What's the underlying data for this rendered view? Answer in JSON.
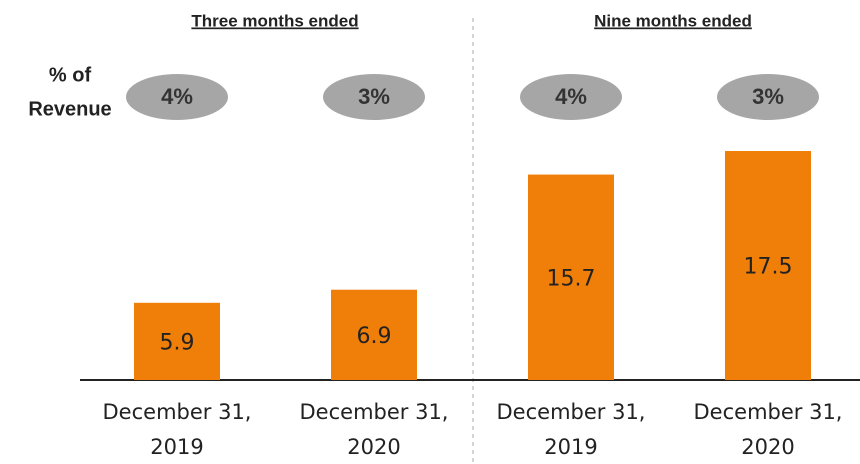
{
  "chart_data": {
    "type": "bar",
    "group_labels": [
      "Three months ended",
      "Nine months ended"
    ],
    "ratio_label": [
      "% of",
      "Revenue"
    ],
    "categories": [
      [
        "December 31,",
        "2019"
      ],
      [
        "December 31,",
        "2020"
      ],
      [
        "December 31,",
        "2019"
      ],
      [
        "December 31,",
        "2020"
      ]
    ],
    "values": [
      5.9,
      6.9,
      15.7,
      17.5
    ],
    "color": "#f07f09",
    "percent_of_revenue": [
      4,
      3,
      4,
      3
    ],
    "percent_of_revenue_labels": [
      "4%",
      "3%",
      "4%",
      "3%"
    ],
    "oval_color": "#a6a6a6"
  }
}
